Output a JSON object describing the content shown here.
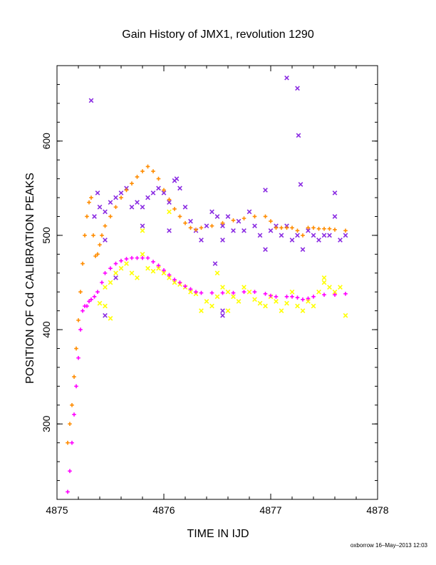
{
  "chart_data": {
    "type": "scatter",
    "title": "Gain History of JMX1, revolution 1290",
    "xlabel": "TIME IN IJD",
    "ylabel": "POSITION OF Cd CALIBRATION PEAKS",
    "xlim": [
      4875,
      4878
    ],
    "ylim": [
      220,
      680
    ],
    "xticks": [
      4875,
      4876,
      4877,
      4878
    ],
    "yticks": [
      300,
      400,
      500,
      600
    ],
    "xtick_labels": [
      "4875",
      "4876",
      "4877",
      "4878"
    ],
    "ytick_labels": [
      "300",
      "400",
      "500",
      "600"
    ],
    "grid": false,
    "legend": "none",
    "credit": "oxborrow 16–May–2013 12:03",
    "series": [
      {
        "marker": "x",
        "color": "#8a2be2",
        "points": [
          [
            4875.32,
            643
          ],
          [
            4875.35,
            520
          ],
          [
            4875.38,
            545
          ],
          [
            4875.4,
            530
          ],
          [
            4875.45,
            525
          ],
          [
            4875.5,
            535
          ],
          [
            4875.55,
            540
          ],
          [
            4875.6,
            545
          ],
          [
            4875.65,
            550
          ],
          [
            4875.7,
            530
          ],
          [
            4875.75,
            535
          ],
          [
            4875.8,
            530
          ],
          [
            4875.85,
            540
          ],
          [
            4875.9,
            545
          ],
          [
            4875.95,
            550
          ],
          [
            4876.0,
            545
          ],
          [
            4876.05,
            535
          ],
          [
            4876.1,
            558
          ],
          [
            4876.12,
            560
          ],
          [
            4876.15,
            550
          ],
          [
            4876.2,
            530
          ],
          [
            4876.25,
            515
          ],
          [
            4876.3,
            505
          ],
          [
            4876.35,
            495
          ],
          [
            4876.4,
            510
          ],
          [
            4876.45,
            525
          ],
          [
            4876.5,
            520
          ],
          [
            4876.55,
            495
          ],
          [
            4876.6,
            520
          ],
          [
            4876.65,
            505
          ],
          [
            4876.7,
            515
          ],
          [
            4876.75,
            505
          ],
          [
            4876.8,
            525
          ],
          [
            4876.85,
            510
          ],
          [
            4876.9,
            500
          ],
          [
            4876.95,
            485
          ],
          [
            4877.0,
            505
          ],
          [
            4877.05,
            510
          ],
          [
            4877.1,
            500
          ],
          [
            4877.15,
            510
          ],
          [
            4877.2,
            495
          ],
          [
            4877.25,
            500
          ],
          [
            4877.3,
            485
          ],
          [
            4877.35,
            505
          ],
          [
            4877.4,
            500
          ],
          [
            4877.45,
            495
          ],
          [
            4877.5,
            500
          ],
          [
            4877.55,
            500
          ],
          [
            4877.6,
            520
          ],
          [
            4877.65,
            495
          ],
          [
            4877.7,
            500
          ],
          [
            4876.55,
            420
          ],
          [
            4876.55,
            415
          ],
          [
            4876.48,
            470
          ],
          [
            4876.55,
            510
          ],
          [
            4875.45,
            415
          ],
          [
            4875.55,
            455
          ],
          [
            4875.8,
            510
          ],
          [
            4875.45,
            495
          ],
          [
            4876.05,
            505
          ],
          [
            4877.15,
            667
          ],
          [
            4877.25,
            656
          ],
          [
            4877.26,
            606
          ],
          [
            4877.28,
            554
          ],
          [
            4877.6,
            545
          ],
          [
            4876.95,
            548
          ]
        ]
      },
      {
        "marker": "x",
        "color": "#ffff00",
        "points": [
          [
            4875.4,
            428
          ],
          [
            4875.45,
            445
          ],
          [
            4875.5,
            450
          ],
          [
            4875.55,
            460
          ],
          [
            4875.6,
            465
          ],
          [
            4875.65,
            470
          ],
          [
            4875.7,
            460
          ],
          [
            4875.75,
            455
          ],
          [
            4875.8,
            480
          ],
          [
            4875.85,
            465
          ],
          [
            4875.9,
            462
          ],
          [
            4875.95,
            465
          ],
          [
            4876.0,
            460
          ],
          [
            4876.05,
            455
          ],
          [
            4876.1,
            450
          ],
          [
            4876.15,
            448
          ],
          [
            4876.2,
            445
          ],
          [
            4876.25,
            440
          ],
          [
            4876.3,
            438
          ],
          [
            4876.35,
            420
          ],
          [
            4876.4,
            430
          ],
          [
            4876.45,
            425
          ],
          [
            4876.5,
            435
          ],
          [
            4876.55,
            445
          ],
          [
            4876.6,
            440
          ],
          [
            4876.65,
            435
          ],
          [
            4876.7,
            430
          ],
          [
            4876.75,
            445
          ],
          [
            4876.8,
            440
          ],
          [
            4876.85,
            432
          ],
          [
            4876.9,
            428
          ],
          [
            4876.95,
            425
          ],
          [
            4877.0,
            435
          ],
          [
            4877.05,
            430
          ],
          [
            4877.1,
            420
          ],
          [
            4877.15,
            428
          ],
          [
            4877.2,
            440
          ],
          [
            4877.25,
            425
          ],
          [
            4877.3,
            420
          ],
          [
            4877.35,
            430
          ],
          [
            4877.4,
            425
          ],
          [
            4877.45,
            440
          ],
          [
            4877.5,
            450
          ],
          [
            4877.55,
            445
          ],
          [
            4877.6,
            440
          ],
          [
            4877.65,
            445
          ],
          [
            4877.7,
            415
          ],
          [
            4875.8,
            505
          ],
          [
            4876.05,
            525
          ],
          [
            4875.45,
            425
          ],
          [
            4875.5,
            412
          ],
          [
            4876.5,
            460
          ],
          [
            4876.6,
            420
          ],
          [
            4877.5,
            455
          ]
        ]
      },
      {
        "marker": "+",
        "color": "#ff8c00",
        "points": [
          [
            4875.1,
            280
          ],
          [
            4875.12,
            300
          ],
          [
            4875.14,
            320
          ],
          [
            4875.16,
            350
          ],
          [
            4875.18,
            380
          ],
          [
            4875.2,
            410
          ],
          [
            4875.22,
            440
          ],
          [
            4875.24,
            470
          ],
          [
            4875.26,
            500
          ],
          [
            4875.28,
            520
          ],
          [
            4875.3,
            535
          ],
          [
            4875.32,
            540
          ],
          [
            4875.34,
            500
          ],
          [
            4875.36,
            478
          ],
          [
            4875.38,
            480
          ],
          [
            4875.4,
            490
          ],
          [
            4875.42,
            500
          ],
          [
            4875.45,
            510
          ],
          [
            4875.5,
            520
          ],
          [
            4875.55,
            530
          ],
          [
            4875.6,
            540
          ],
          [
            4875.65,
            548
          ],
          [
            4875.7,
            555
          ],
          [
            4875.75,
            562
          ],
          [
            4875.8,
            568
          ],
          [
            4875.85,
            573
          ],
          [
            4875.9,
            568
          ],
          [
            4875.95,
            560
          ],
          [
            4876.0,
            548
          ],
          [
            4876.05,
            538
          ],
          [
            4876.1,
            528
          ],
          [
            4876.15,
            520
          ],
          [
            4876.2,
            513
          ],
          [
            4876.25,
            508
          ],
          [
            4876.3,
            506
          ],
          [
            4876.35,
            508
          ],
          [
            4876.45,
            510
          ],
          [
            4876.55,
            513
          ],
          [
            4876.65,
            516
          ],
          [
            4876.75,
            518
          ],
          [
            4876.85,
            520
          ],
          [
            4876.95,
            520
          ],
          [
            4877.0,
            515
          ],
          [
            4877.05,
            508
          ],
          [
            4877.1,
            508
          ],
          [
            4877.15,
            508
          ],
          [
            4877.2,
            508
          ],
          [
            4877.25,
            505
          ],
          [
            4877.3,
            500
          ],
          [
            4877.35,
            508
          ],
          [
            4877.4,
            508
          ],
          [
            4877.45,
            507
          ],
          [
            4877.5,
            507
          ],
          [
            4877.55,
            507
          ],
          [
            4877.6,
            506
          ],
          [
            4877.7,
            505
          ]
        ]
      },
      {
        "marker": "+",
        "color": "#ff00ff",
        "points": [
          [
            4875.1,
            228
          ],
          [
            4875.12,
            250
          ],
          [
            4875.14,
            280
          ],
          [
            4875.16,
            310
          ],
          [
            4875.18,
            340
          ],
          [
            4875.2,
            370
          ],
          [
            4875.22,
            400
          ],
          [
            4875.24,
            420
          ],
          [
            4875.26,
            425
          ],
          [
            4875.28,
            425
          ],
          [
            4875.3,
            430
          ],
          [
            4875.32,
            432
          ],
          [
            4875.35,
            435
          ],
          [
            4875.38,
            440
          ],
          [
            4875.42,
            450
          ],
          [
            4875.45,
            460
          ],
          [
            4875.5,
            465
          ],
          [
            4875.55,
            470
          ],
          [
            4875.6,
            473
          ],
          [
            4875.65,
            475
          ],
          [
            4875.7,
            476
          ],
          [
            4875.75,
            476
          ],
          [
            4875.8,
            476
          ],
          [
            4875.85,
            476
          ],
          [
            4875.9,
            472
          ],
          [
            4875.95,
            468
          ],
          [
            4876.0,
            463
          ],
          [
            4876.05,
            458
          ],
          [
            4876.1,
            453
          ],
          [
            4876.15,
            450
          ],
          [
            4876.2,
            446
          ],
          [
            4876.25,
            443
          ],
          [
            4876.3,
            440
          ],
          [
            4876.35,
            439
          ],
          [
            4876.45,
            439
          ],
          [
            4876.55,
            439
          ],
          [
            4876.65,
            439
          ],
          [
            4876.75,
            440
          ],
          [
            4876.85,
            440
          ],
          [
            4876.95,
            438
          ],
          [
            4877.0,
            436
          ],
          [
            4877.05,
            435
          ],
          [
            4877.15,
            435
          ],
          [
            4877.2,
            435
          ],
          [
            4877.25,
            434
          ],
          [
            4877.3,
            432
          ],
          [
            4877.35,
            433
          ],
          [
            4877.4,
            435
          ],
          [
            4877.5,
            437
          ],
          [
            4877.6,
            437
          ],
          [
            4877.7,
            438
          ]
        ]
      }
    ]
  }
}
